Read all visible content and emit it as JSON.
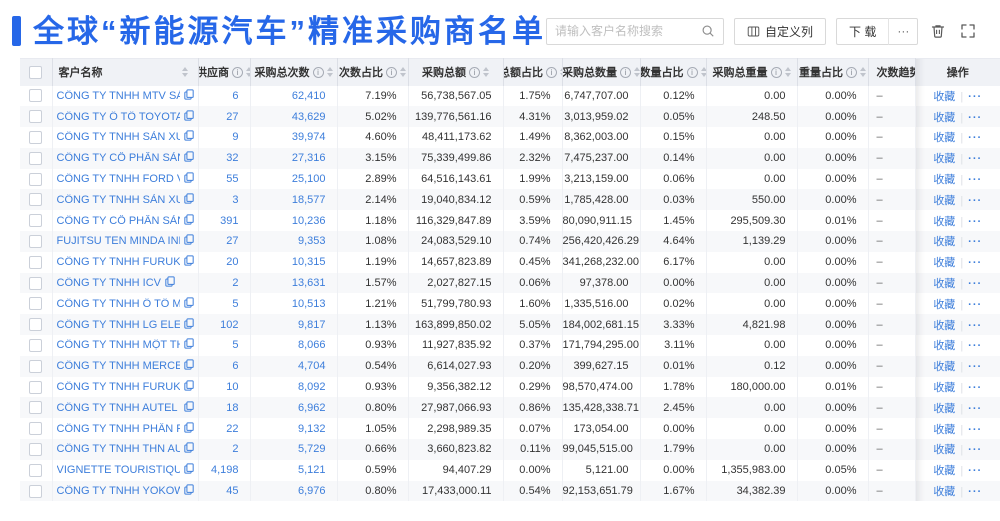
{
  "page": {
    "title": "全球“新能源汽车”精准采购商名单"
  },
  "colors": {
    "accent_blue": "#2667e8",
    "link_blue": "#3d7edb",
    "header_bg": "#f0f2f6",
    "zebra": "#f7f8fa"
  },
  "toolbar": {
    "search_placeholder": "请输入客户名称搜索",
    "custom_columns_label": "自定义列",
    "download_label": "下 载",
    "more_label": "···",
    "icons": [
      "search-icon",
      "columns-icon",
      "trash-icon",
      "fullscreen-icon"
    ]
  },
  "table": {
    "headers": [
      {
        "key": "select",
        "type": "checkbox",
        "label": ""
      },
      {
        "key": "customer-name",
        "label": "客户名称",
        "sort": true,
        "info": false
      },
      {
        "key": "suppliers",
        "label": "供应商",
        "sort": true,
        "info": true
      },
      {
        "key": "total-purchases",
        "label": "采购总次数",
        "sort": true,
        "info": true
      },
      {
        "key": "count-share",
        "label": "次数占比",
        "sort": true,
        "info": true
      },
      {
        "key": "total-amount",
        "label": "采购总额",
        "sort": true,
        "info": true
      },
      {
        "key": "amount-share",
        "label": "总额占比",
        "sort": true,
        "info": true
      },
      {
        "key": "total-quantity",
        "label": "采购总数量",
        "sort": true,
        "info": true
      },
      {
        "key": "quantity-share",
        "label": "数量占比",
        "sort": true,
        "info": true
      },
      {
        "key": "total-weight",
        "label": "采购总重量",
        "sort": true,
        "info": true
      },
      {
        "key": "weight-share",
        "label": "重量占比",
        "sort": true,
        "info": true
      },
      {
        "key": "count-trend",
        "label": "次数趋势",
        "sort": false,
        "info": false
      },
      {
        "key": "actions",
        "label": "操作",
        "sort": false,
        "info": false
      }
    ],
    "action_favorite": "收藏",
    "action_separator": "|",
    "action_more": "···",
    "rows": [
      {
        "name": "CÔNG TY TNHH MTV SẢN XUẤ...",
        "suppliers": "6",
        "total_count": "62,410",
        "count_pct": "7.19%",
        "total_amount": "56,738,567.05",
        "amount_pct": "1.75%",
        "total_qty": "6,747,707.00",
        "qty_pct": "0.12%",
        "total_weight": "0.00",
        "weight_pct": "0.00%",
        "trend": "–"
      },
      {
        "name": "CÔNG TY Ô TÔ TOYOTA VIỆT ...",
        "suppliers": "27",
        "total_count": "43,629",
        "count_pct": "5.02%",
        "total_amount": "139,776,561.16",
        "amount_pct": "4.31%",
        "total_qty": "3,013,959.02",
        "qty_pct": "0.05%",
        "total_weight": "248.50",
        "weight_pct": "0.00%",
        "trend": "–"
      },
      {
        "name": "CÔNG TY TNHH SẢN XUẤT VÀ ...",
        "suppliers": "9",
        "total_count": "39,974",
        "count_pct": "4.60%",
        "total_amount": "48,411,173.62",
        "amount_pct": "1.49%",
        "total_qty": "8,362,003.00",
        "qty_pct": "0.15%",
        "total_weight": "0.00",
        "weight_pct": "0.00%",
        "trend": "–"
      },
      {
        "name": "CÔNG TY CỔ PHẦN SẢN XUẤT...",
        "suppliers": "32",
        "total_count": "27,316",
        "count_pct": "3.15%",
        "total_amount": "75,339,499.86",
        "amount_pct": "2.32%",
        "total_qty": "7,475,237.00",
        "qty_pct": "0.14%",
        "total_weight": "0.00",
        "weight_pct": "0.00%",
        "trend": "–"
      },
      {
        "name": "CÔNG TY TNHH FORD VIỆT NAM",
        "suppliers": "55",
        "total_count": "25,100",
        "count_pct": "2.89%",
        "total_amount": "64,516,143.61",
        "amount_pct": "1.99%",
        "total_qty": "3,213,159.00",
        "qty_pct": "0.06%",
        "total_weight": "0.00",
        "weight_pct": "0.00%",
        "trend": "–"
      },
      {
        "name": "CÔNG TY TNHH SẢN XUẤT VÀ ...",
        "suppliers": "3",
        "total_count": "18,577",
        "count_pct": "2.14%",
        "total_amount": "19,040,834.12",
        "amount_pct": "0.59%",
        "total_qty": "1,785,428.00",
        "qty_pct": "0.03%",
        "total_weight": "550.00",
        "weight_pct": "0.00%",
        "trend": "–"
      },
      {
        "name": "CÔNG TY CỔ PHẦN SẢN XUẤT...",
        "suppliers": "391",
        "total_count": "10,236",
        "count_pct": "1.18%",
        "total_amount": "116,329,847.89",
        "amount_pct": "3.59%",
        "total_qty": "80,090,911.15",
        "qty_pct": "1.45%",
        "total_weight": "295,509.30",
        "weight_pct": "0.01%",
        "trend": "–"
      },
      {
        "name": "FUJITSU TEN MINDA INDIA PVT...",
        "suppliers": "27",
        "total_count": "9,353",
        "count_pct": "1.08%",
        "total_amount": "24,083,529.10",
        "amount_pct": "0.74%",
        "total_qty": "256,420,426.29",
        "qty_pct": "4.64%",
        "total_weight": "1,139.29",
        "weight_pct": "0.00%",
        "trend": "–"
      },
      {
        "name": "CÔNG TY TNHH FURUKAWA A...",
        "suppliers": "20",
        "total_count": "10,315",
        "count_pct": "1.19%",
        "total_amount": "14,657,823.89",
        "amount_pct": "0.45%",
        "total_qty": "341,268,232.00",
        "qty_pct": "6.17%",
        "total_weight": "0.00",
        "weight_pct": "0.00%",
        "trend": "–"
      },
      {
        "name": "CÔNG TY TNHH ICV",
        "suppliers": "2",
        "total_count": "13,631",
        "count_pct": "1.57%",
        "total_amount": "2,027,827.15",
        "amount_pct": "0.06%",
        "total_qty": "97,378.00",
        "qty_pct": "0.00%",
        "total_weight": "0.00",
        "weight_pct": "0.00%",
        "trend": "–"
      },
      {
        "name": "CÔNG TY TNHH Ô TÔ MITSUBI...",
        "suppliers": "5",
        "total_count": "10,513",
        "count_pct": "1.21%",
        "total_amount": "51,799,780.93",
        "amount_pct": "1.60%",
        "total_qty": "1,335,516.00",
        "qty_pct": "0.02%",
        "total_weight": "0.00",
        "weight_pct": "0.00%",
        "trend": "–"
      },
      {
        "name": "CÔNG TY TNHH LG ELECTRON...",
        "suppliers": "102",
        "total_count": "9,817",
        "count_pct": "1.13%",
        "total_amount": "163,899,850.02",
        "amount_pct": "5.05%",
        "total_qty": "184,002,681.15",
        "qty_pct": "3.33%",
        "total_weight": "4,821.98",
        "weight_pct": "0.00%",
        "trend": "–"
      },
      {
        "name": "CÔNG TY TNHH MỘT THÀNH V...",
        "suppliers": "5",
        "total_count": "8,066",
        "count_pct": "0.93%",
        "total_amount": "11,927,835.92",
        "amount_pct": "0.37%",
        "total_qty": "171,794,295.00",
        "qty_pct": "3.11%",
        "total_weight": "0.00",
        "weight_pct": "0.00%",
        "trend": "–"
      },
      {
        "name": "CÔNG TY TNHH MERCEDES–B...",
        "suppliers": "6",
        "total_count": "4,704",
        "count_pct": "0.54%",
        "total_amount": "6,614,027.93",
        "amount_pct": "0.20%",
        "total_qty": "399,627.15",
        "qty_pct": "0.01%",
        "total_weight": "0.12",
        "weight_pct": "0.00%",
        "trend": "–"
      },
      {
        "name": "CÔNG TY TNHH FURUKAWA A...",
        "suppliers": "10",
        "total_count": "8,092",
        "count_pct": "0.93%",
        "total_amount": "9,356,382.12",
        "amount_pct": "0.29%",
        "total_qty": "98,570,474.00",
        "qty_pct": "1.78%",
        "total_weight": "180,000.00",
        "weight_pct": "0.01%",
        "trend": "–"
      },
      {
        "name": "CÔNG TY TNHH AUTEL VIỆT N...",
        "suppliers": "18",
        "total_count": "6,962",
        "count_pct": "0.80%",
        "total_amount": "27,987,066.93",
        "amount_pct": "0.86%",
        "total_qty": "135,428,338.71",
        "qty_pct": "2.45%",
        "total_weight": "0.00",
        "weight_pct": "0.00%",
        "trend": "–"
      },
      {
        "name": "CÔNG TY TNHH PHÂN PHỐI T...",
        "suppliers": "22",
        "total_count": "9,132",
        "count_pct": "1.05%",
        "total_amount": "2,298,989.35",
        "amount_pct": "0.07%",
        "total_qty": "173,054.00",
        "qty_pct": "0.00%",
        "total_weight": "0.00",
        "weight_pct": "0.00%",
        "trend": "–"
      },
      {
        "name": "CÔNG TY TNHH THN AUTOPAR...",
        "suppliers": "2",
        "total_count": "5,729",
        "count_pct": "0.66%",
        "total_amount": "3,660,823.82",
        "amount_pct": "0.11%",
        "total_qty": "99,045,515.00",
        "qty_pct": "1.79%",
        "total_weight": "0.00",
        "weight_pct": "0.00%",
        "trend": "–"
      },
      {
        "name": "VIGNETTE TOURISTIQUE G UNI...",
        "suppliers": "4,198",
        "total_count": "5,121",
        "count_pct": "0.59%",
        "total_amount": "94,407.29",
        "amount_pct": "0.00%",
        "total_qty": "5,121.00",
        "qty_pct": "0.00%",
        "total_weight": "1,355,983.00",
        "weight_pct": "0.05%",
        "trend": "–"
      },
      {
        "name": "CÔNG TY TNHH YOKOWO VIỆT...",
        "suppliers": "45",
        "total_count": "6,976",
        "count_pct": "0.80%",
        "total_amount": "17,433,000.11",
        "amount_pct": "0.54%",
        "total_qty": "92,153,651.79",
        "qty_pct": "1.67%",
        "total_weight": "34,382.39",
        "weight_pct": "0.00%",
        "trend": "–"
      }
    ]
  }
}
